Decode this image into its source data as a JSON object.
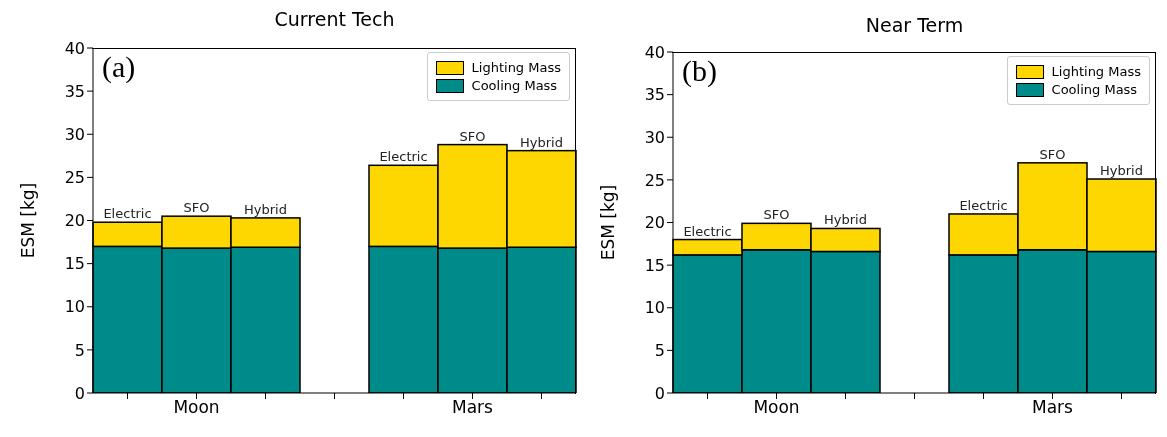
{
  "chart_data": [
    {
      "type": "bar",
      "title": "Current Tech",
      "ylabel": "ESM [kg]",
      "stacked": true,
      "categories": [
        null,
        "Moon",
        null,
        null,
        null,
        "Mars",
        null
      ],
      "series": [
        {
          "name": "Cooling Mass",
          "color": "#008b8b",
          "values": [
            17.0,
            16.8,
            16.9,
            null,
            17.0,
            16.8,
            16.9
          ]
        },
        {
          "name": "Lighting Mass",
          "color": "#ffd700",
          "values": [
            2.8,
            3.7,
            3.4,
            null,
            9.4,
            12.0,
            11.2
          ],
          "value_labels": [
            "Electric",
            "SFO",
            "Hybrid",
            null,
            "Electric",
            "SFO",
            "Hybrid"
          ]
        }
      ],
      "ylim": [
        0,
        40
      ],
      "yticks": [
        0,
        5,
        10,
        15,
        20,
        25,
        30,
        35,
        40
      ],
      "grid": false,
      "legend": "top right",
      "annotations": [
        "(a)"
      ]
    },
    {
      "type": "bar",
      "title": "Near Term",
      "ylabel": "ESM [kg]",
      "stacked": true,
      "categories": [
        null,
        "Moon",
        null,
        null,
        null,
        "Mars",
        null
      ],
      "series": [
        {
          "name": "Cooling Mass",
          "color": "#008b8b",
          "values": [
            16.2,
            16.8,
            16.6,
            null,
            16.2,
            16.8,
            16.6
          ]
        },
        {
          "name": "Lighting Mass",
          "color": "#ffd700",
          "values": [
            1.8,
            3.1,
            2.7,
            null,
            4.8,
            10.2,
            8.5
          ],
          "value_labels": [
            "Electric",
            "SFO",
            "Hybrid",
            null,
            "Electric",
            "SFO",
            "Hybrid"
          ]
        }
      ],
      "ylim": [
        0,
        40
      ],
      "yticks": [
        0,
        5,
        10,
        15,
        20,
        25,
        30,
        35,
        40
      ],
      "grid": false,
      "legend": "top right",
      "annotations": [
        "(b)"
      ]
    }
  ]
}
